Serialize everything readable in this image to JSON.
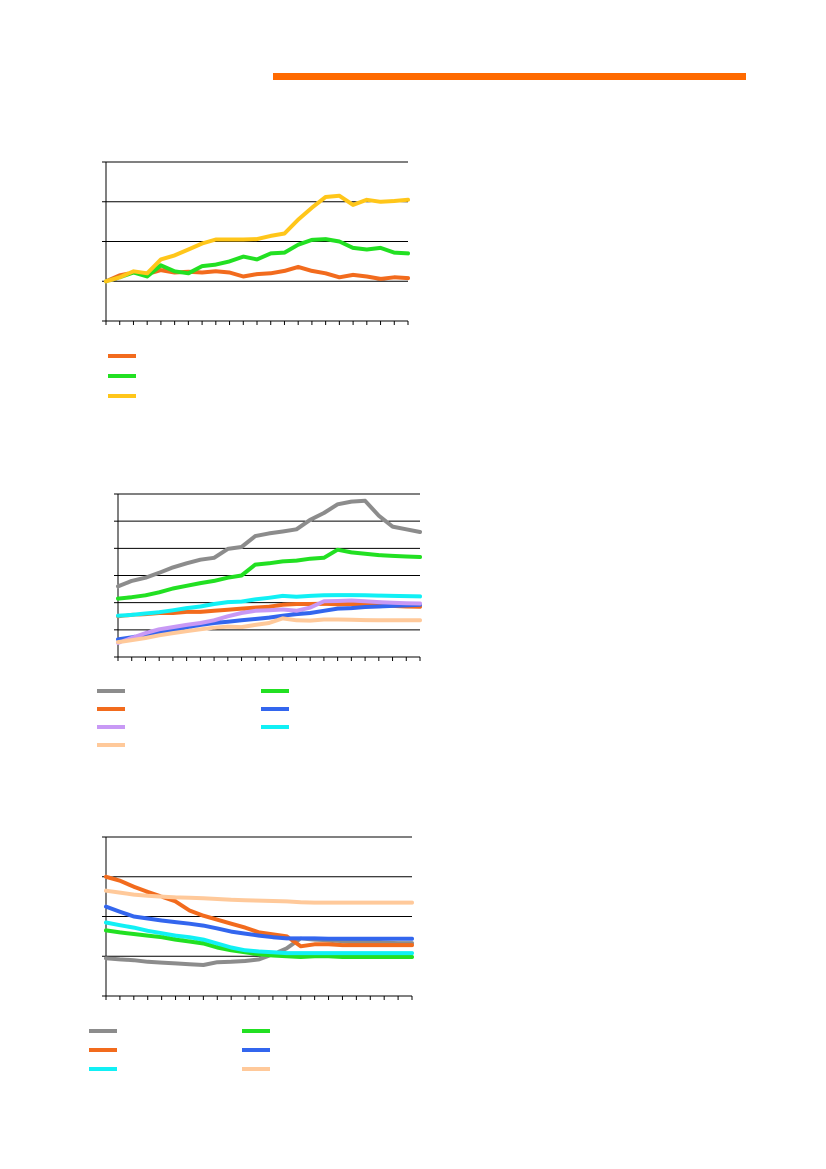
{
  "header": {
    "accent_color": "#FF6A00"
  },
  "chart_data": [
    {
      "type": "line",
      "title": "",
      "xlabel": "",
      "ylabel": "",
      "ylim": [
        0,
        4
      ],
      "grid": true,
      "legend_position": "bottom",
      "x": [
        0,
        1,
        2,
        3,
        4,
        5,
        6,
        7,
        8,
        9,
        10,
        11,
        12,
        13,
        14,
        15,
        16,
        17,
        18,
        19,
        20,
        21,
        22
      ],
      "series": [
        {
          "color": "#F26B1D",
          "values": [
            1.0,
            1.15,
            1.22,
            1.18,
            1.28,
            1.22,
            1.24,
            1.22,
            1.25,
            1.22,
            1.12,
            1.18,
            1.2,
            1.26,
            1.36,
            1.26,
            1.2,
            1.1,
            1.16,
            1.12,
            1.06,
            1.1,
            1.08
          ]
        },
        {
          "color": "#22E022",
          "values": [
            1.0,
            1.1,
            1.22,
            1.12,
            1.4,
            1.25,
            1.2,
            1.38,
            1.42,
            1.5,
            1.62,
            1.55,
            1.7,
            1.72,
            1.92,
            2.04,
            2.06,
            2.0,
            1.84,
            1.8,
            1.84,
            1.72,
            1.7
          ]
        },
        {
          "color": "#FFC61A",
          "values": [
            1.0,
            1.1,
            1.25,
            1.2,
            1.55,
            1.65,
            1.8,
            1.95,
            2.05,
            2.05,
            2.05,
            2.06,
            2.14,
            2.2,
            2.55,
            2.85,
            3.12,
            3.15,
            2.92,
            3.05,
            3.0,
            3.02,
            3.05
          ]
        }
      ]
    },
    {
      "type": "line",
      "title": "",
      "xlabel": "",
      "ylabel": "",
      "ylim": [
        0,
        6
      ],
      "grid": true,
      "legend_position": "bottom",
      "x": [
        0,
        1,
        2,
        3,
        4,
        5,
        6,
        7,
        8,
        9,
        10,
        11,
        12,
        13,
        14,
        15,
        16,
        17,
        18,
        19,
        20,
        21,
        22
      ],
      "series": [
        {
          "color": "#8C8C8C",
          "values": [
            2.6,
            2.8,
            2.92,
            3.1,
            3.3,
            3.45,
            3.58,
            3.65,
            3.98,
            4.05,
            4.45,
            4.55,
            4.62,
            4.7,
            5.05,
            5.3,
            5.62,
            5.72,
            5.75,
            5.2,
            4.8,
            4.7,
            4.6
          ]
        },
        {
          "color": "#22E022",
          "values": [
            2.15,
            2.2,
            2.27,
            2.38,
            2.52,
            2.62,
            2.72,
            2.8,
            2.92,
            3.0,
            3.4,
            3.45,
            3.52,
            3.55,
            3.62,
            3.65,
            3.95,
            3.85,
            3.8,
            3.75,
            3.72,
            3.7,
            3.68
          ]
        },
        {
          "color": "#F26B1D",
          "values": [
            1.5,
            1.55,
            1.58,
            1.62,
            1.62,
            1.66,
            1.66,
            1.7,
            1.74,
            1.78,
            1.82,
            1.85,
            1.92,
            1.95,
            1.95,
            1.96,
            1.94,
            1.95,
            1.92,
            1.9,
            1.88,
            1.86,
            1.85
          ]
        },
        {
          "color": "#3366EE",
          "values": [
            0.65,
            0.72,
            0.82,
            0.92,
            1.0,
            1.1,
            1.18,
            1.25,
            1.3,
            1.35,
            1.4,
            1.45,
            1.52,
            1.58,
            1.62,
            1.7,
            1.78,
            1.8,
            1.84,
            1.86,
            1.88,
            1.9,
            1.92
          ]
        },
        {
          "color": "#C899F5",
          "values": [
            0.52,
            0.7,
            0.88,
            1.02,
            1.1,
            1.18,
            1.25,
            1.35,
            1.5,
            1.62,
            1.7,
            1.72,
            1.75,
            1.7,
            1.82,
            2.05,
            2.06,
            2.08,
            2.05,
            2.02,
            2.0,
            1.98,
            1.97
          ]
        },
        {
          "color": "#11F0F5",
          "values": [
            1.52,
            1.55,
            1.6,
            1.65,
            1.72,
            1.8,
            1.86,
            1.95,
            2.02,
            2.04,
            2.12,
            2.18,
            2.25,
            2.22,
            2.25,
            2.27,
            2.28,
            2.28,
            2.27,
            2.26,
            2.25,
            2.24,
            2.23
          ]
        },
        {
          "color": "#FFC99A",
          "values": [
            0.55,
            0.62,
            0.7,
            0.8,
            0.88,
            0.95,
            1.02,
            1.08,
            1.12,
            1.1,
            1.18,
            1.25,
            1.42,
            1.35,
            1.34,
            1.38,
            1.38,
            1.37,
            1.36,
            1.35,
            1.35,
            1.35,
            1.35
          ]
        }
      ]
    },
    {
      "type": "line",
      "title": "",
      "xlabel": "",
      "ylabel": "",
      "ylim": [
        0,
        4
      ],
      "grid": true,
      "legend_position": "bottom",
      "x": [
        0,
        1,
        2,
        3,
        4,
        5,
        6,
        7,
        8,
        9,
        10,
        11,
        12,
        13,
        14,
        15,
        16,
        17,
        18,
        19,
        20,
        21,
        22
      ],
      "series": [
        {
          "color": "#8C8C8C",
          "values": [
            0.95,
            0.92,
            0.9,
            0.86,
            0.84,
            0.82,
            0.8,
            0.78,
            0.85,
            0.86,
            0.88,
            0.92,
            1.05,
            1.2,
            1.45,
            1.42,
            1.4,
            1.38,
            1.36,
            1.35,
            1.34,
            1.33,
            1.33
          ]
        },
        {
          "color": "#22E022",
          "values": [
            1.65,
            1.6,
            1.56,
            1.52,
            1.48,
            1.42,
            1.37,
            1.32,
            1.22,
            1.15,
            1.1,
            1.05,
            1.02,
            1.0,
            0.98,
            1.0,
            1.0,
            0.98,
            0.98,
            0.98,
            0.98,
            0.98,
            0.98
          ]
        },
        {
          "color": "#F26B1D",
          "values": [
            3.0,
            2.9,
            2.75,
            2.62,
            2.5,
            2.38,
            2.15,
            2.02,
            1.92,
            1.82,
            1.72,
            1.6,
            1.55,
            1.5,
            1.25,
            1.3,
            1.3,
            1.28,
            1.28,
            1.28,
            1.28,
            1.28,
            1.28
          ]
        },
        {
          "color": "#3366EE",
          "values": [
            2.25,
            2.12,
            2.0,
            1.95,
            1.9,
            1.86,
            1.82,
            1.77,
            1.7,
            1.62,
            1.57,
            1.52,
            1.48,
            1.45,
            1.45,
            1.45,
            1.44,
            1.44,
            1.44,
            1.44,
            1.44,
            1.44,
            1.44
          ]
        },
        {
          "color": "#11F0F5",
          "values": [
            1.85,
            1.78,
            1.72,
            1.64,
            1.58,
            1.52,
            1.48,
            1.42,
            1.32,
            1.22,
            1.15,
            1.12,
            1.1,
            1.08,
            1.08,
            1.08,
            1.08,
            1.08,
            1.08,
            1.08,
            1.08,
            1.08,
            1.08
          ]
        },
        {
          "color": "#FFC99A",
          "values": [
            2.65,
            2.6,
            2.55,
            2.52,
            2.5,
            2.48,
            2.47,
            2.46,
            2.44,
            2.42,
            2.41,
            2.4,
            2.39,
            2.38,
            2.36,
            2.35,
            2.35,
            2.35,
            2.35,
            2.35,
            2.35,
            2.35,
            2.35
          ]
        }
      ]
    }
  ]
}
